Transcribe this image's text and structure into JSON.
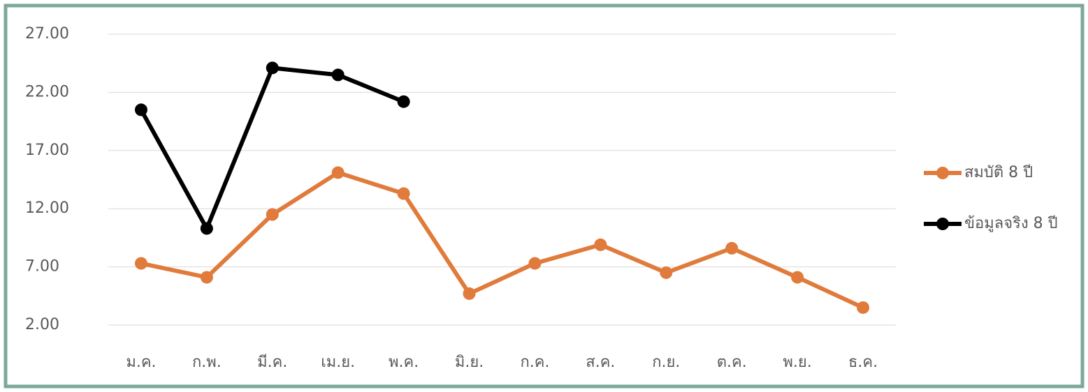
{
  "chart_data": {
    "type": "line",
    "categories": [
      "ม.ค.",
      "ก.พ.",
      "มี.ค.",
      "เม.ย.",
      "พ.ค.",
      "มิ.ย.",
      "ก.ค.",
      "ส.ค.",
      "ก.ย.",
      "ต.ค.",
      "พ.ย.",
      "ธ.ค."
    ],
    "series": [
      {
        "name": "สมบัติ 8 ปี",
        "color": "#e07b3c",
        "values": [
          7.3,
          6.1,
          11.5,
          15.1,
          13.3,
          4.7,
          7.3,
          8.9,
          6.5,
          8.6,
          6.1,
          3.5
        ]
      },
      {
        "name": "ข้อมูลจริง 8 ปี",
        "color": "#000000",
        "values": [
          20.5,
          10.3,
          24.1,
          23.5,
          21.2,
          null,
          null,
          null,
          null,
          null,
          null,
          null
        ]
      }
    ],
    "ylim": [
      2,
      27
    ],
    "yticks": [
      {
        "value": 2,
        "label": "2.00"
      },
      {
        "value": 7,
        "label": "7.00"
      },
      {
        "value": 12,
        "label": "12.00"
      },
      {
        "value": 17,
        "label": "17.00"
      },
      {
        "value": 22,
        "label": "22.00"
      },
      {
        "value": 27,
        "label": "27.00"
      }
    ],
    "grid": true,
    "legend": "right"
  }
}
